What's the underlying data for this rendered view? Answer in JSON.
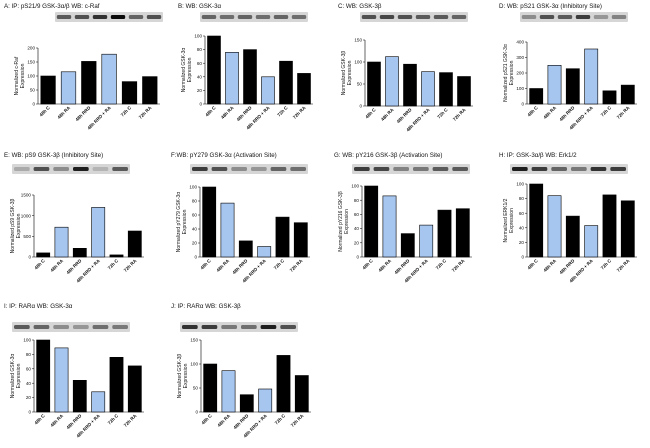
{
  "colors": {
    "dark": "#000000",
    "light": "#a7c6ef"
  },
  "chart_data": [
    {
      "type": "bar",
      "title": "A: IP: pS21/9 GSK-3α/β WB: c-Raf",
      "ylabel": "Normalized c-Raf Expression",
      "ylim": [
        0,
        200
      ],
      "yticks": [
        0,
        50,
        100,
        150,
        200
      ],
      "categories": [
        "48h C",
        "48h RA",
        "48h RRD",
        "48h RRD + RA",
        "72h C",
        "72h RA"
      ],
      "values": [
        100,
        115,
        152,
        178,
        80,
        98
      ],
      "colors": [
        "dark",
        "light",
        "dark",
        "light",
        "dark",
        "dark"
      ],
      "blot": [
        0.55,
        0.6,
        0.75,
        0.95,
        0.5,
        0.6
      ]
    },
    {
      "type": "bar",
      "title": "B: WB: GSK-3α",
      "ylabel": "Normalized GSK-3α Expression",
      "ylim": [
        0,
        100
      ],
      "yticks": [
        0,
        20,
        40,
        60,
        80,
        100
      ],
      "categories": [
        "48h C",
        "48h RA",
        "48h RRD",
        "48h RRD + RA",
        "72h C",
        "72h RA"
      ],
      "values": [
        100,
        76,
        80,
        40,
        63,
        45
      ],
      "colors": [
        "dark",
        "light",
        "dark",
        "light",
        "dark",
        "dark"
      ],
      "blot": [
        0.5,
        0.45,
        0.5,
        0.45,
        0.5,
        0.45
      ]
    },
    {
      "type": "bar",
      "title": "C: WB: GSK-3β",
      "ylabel": "Normalized GSK-3β Expression",
      "ylim": [
        0,
        150
      ],
      "yticks": [
        0,
        50,
        100,
        150
      ],
      "categories": [
        "48h C",
        "48h RA",
        "48h RRD",
        "48h RRD + RA",
        "72h C",
        "72h RA"
      ],
      "values": [
        100,
        112,
        95,
        78,
        76,
        67
      ],
      "colors": [
        "dark",
        "light",
        "dark",
        "light",
        "dark",
        "dark"
      ],
      "blot": [
        0.6,
        0.65,
        0.6,
        0.55,
        0.55,
        0.5
      ]
    },
    {
      "type": "bar",
      "title": "D: WB: pS21 GSK-3α (Inhibitory Site)",
      "ylabel": "Normalized pS21 GSK-3α Expression",
      "ylim": [
        0,
        400
      ],
      "yticks": [
        0,
        100,
        200,
        300,
        400
      ],
      "categories": [
        "48h C",
        "48h RA",
        "48h RRD",
        "48h RRD + RA",
        "72h C",
        "72h RA"
      ],
      "values": [
        100,
        250,
        228,
        355,
        85,
        122
      ],
      "colors": [
        "dark",
        "light",
        "dark",
        "light",
        "dark",
        "dark"
      ],
      "blot": [
        0.3,
        0.6,
        0.55,
        0.7,
        0.25,
        0.35
      ]
    },
    {
      "type": "bar",
      "title": "E: WB: pS9 GSK-3β (Inhibitory Site)",
      "ylabel": "Normalized pS9 GSK-3β Expression",
      "ylim": [
        0,
        1500
      ],
      "yticks": [
        0,
        500,
        1000,
        1500
      ],
      "categories": [
        "48h C",
        "48h RA",
        "48h RRD",
        "48h RRD + RA",
        "72h C",
        "72h RA"
      ],
      "values": [
        100,
        720,
        210,
        1200,
        50,
        630
      ],
      "colors": [
        "dark",
        "light",
        "dark",
        "light",
        "dark",
        "dark"
      ],
      "blot": [
        0.15,
        0.6,
        0.3,
        0.85,
        0.1,
        0.55
      ]
    },
    {
      "type": "bar",
      "title": "F:WB: pY279 GSK-3α (Activation Site)",
      "ylabel": "Normalized pY279 GSK-3α Expression",
      "ylim": [
        0,
        100
      ],
      "yticks": [
        0,
        20,
        40,
        60,
        80,
        100
      ],
      "categories": [
        "48h C",
        "48h RA",
        "48h RRD",
        "48h RRD + RA",
        "72h C",
        "72h RA"
      ],
      "values": [
        100,
        77,
        23,
        15,
        57,
        49
      ],
      "colors": [
        "dark",
        "light",
        "dark",
        "light",
        "dark",
        "dark"
      ],
      "blot": [
        0.7,
        0.6,
        0.3,
        0.25,
        0.5,
        0.45
      ]
    },
    {
      "type": "bar",
      "title": "G: WB: pY216 GSK-3β (Activation Site)",
      "ylabel": "Normalized pY216 GSK-3β Expression",
      "ylim": [
        0,
        100
      ],
      "yticks": [
        0,
        20,
        40,
        60,
        80,
        100
      ],
      "categories": [
        "48h C",
        "48h RA",
        "48h RRD",
        "48h RRD + RA",
        "72h C",
        "72h RA"
      ],
      "values": [
        100,
        86,
        33,
        45,
        66,
        68
      ],
      "colors": [
        "dark",
        "light",
        "dark",
        "light",
        "dark",
        "dark"
      ],
      "blot": [
        0.7,
        0.65,
        0.35,
        0.4,
        0.55,
        0.55
      ]
    },
    {
      "type": "bar",
      "title": "H: IP: GSK-3α/β WB: Erk1/2",
      "ylabel": "Normalized ERK1/2 Expression",
      "ylim": [
        0,
        100
      ],
      "yticks": [
        0,
        20,
        40,
        60,
        80,
        100
      ],
      "categories": [
        "48h C",
        "48h RA",
        "48h RRD",
        "48h RRD + RA",
        "72h C",
        "72h RA"
      ],
      "values": [
        100,
        84,
        56,
        43,
        85,
        77
      ],
      "colors": [
        "dark",
        "light",
        "dark",
        "light",
        "dark",
        "dark"
      ],
      "blot": [
        0.85,
        0.7,
        0.5,
        0.4,
        0.75,
        0.7
      ]
    },
    {
      "type": "bar",
      "title": "I: IP: RARα WB: GSK-3α",
      "ylabel": "Normalized GSK-3α Expression",
      "ylim": [
        0,
        100
      ],
      "yticks": [
        0,
        20,
        40,
        60,
        80,
        100
      ],
      "categories": [
        "48h C",
        "48h RA",
        "48h RRD",
        "48h RRD + RA",
        "72h C",
        "72h RA"
      ],
      "values": [
        100,
        89,
        44,
        28,
        76,
        64
      ],
      "colors": [
        "dark",
        "light",
        "dark",
        "light",
        "dark",
        "dark"
      ],
      "blot": [
        0.55,
        0.5,
        0.3,
        0.25,
        0.45,
        0.4
      ]
    },
    {
      "type": "bar",
      "title": "J: IP: RARα WB: GSK-3β",
      "ylabel": "Normalized GSK-3β Expression",
      "ylim": [
        0,
        150
      ],
      "yticks": [
        0,
        50,
        100,
        150
      ],
      "categories": [
        "48h C",
        "48h RA",
        "48h RRD",
        "48h RRD + RA",
        "72h C",
        "72h RA"
      ],
      "values": [
        100,
        86,
        36,
        48,
        118,
        76
      ],
      "colors": [
        "dark",
        "light",
        "dark",
        "light",
        "dark",
        "dark"
      ],
      "blot": [
        0.75,
        0.7,
        0.4,
        0.45,
        0.85,
        0.6
      ]
    }
  ]
}
